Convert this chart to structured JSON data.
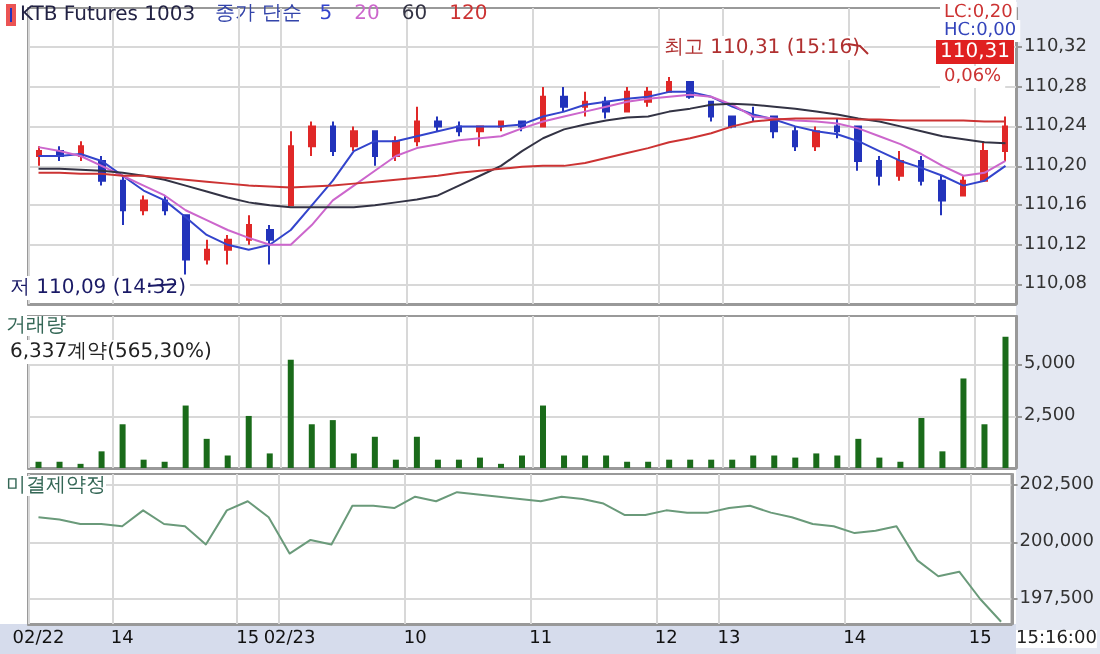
{
  "chart_data": [
    {
      "type": "candlestick",
      "legend": "top left",
      "legend_title": "종가 단순",
      "grid": true,
      "marker": "none",
      "tick_labels": "y",
      "categories": [
        null,
        null,
        null,
        null,
        null,
        null,
        null,
        null,
        null,
        null,
        null,
        null,
        null,
        null,
        null,
        null,
        null,
        null,
        null,
        null,
        null,
        null,
        null,
        null,
        null,
        null,
        null,
        null,
        null,
        null,
        null,
        null,
        null,
        null,
        null,
        null,
        null,
        null,
        null,
        null,
        null,
        null,
        null,
        null,
        null,
        null,
        null
      ],
      "ylim": [
        110.06,
        110.36
      ],
      "yticks": [
        {
          "value": 110.08,
          "label": "110,08"
        },
        {
          "value": 110.12,
          "label": "110,12"
        },
        {
          "value": 110.16,
          "label": "110,16"
        },
        {
          "value": 110.2,
          "label": "110,20"
        },
        {
          "value": 110.24,
          "label": "110,24"
        },
        {
          "value": 110.28,
          "label": "110,28"
        },
        {
          "value": 110.32,
          "label": "110,32"
        }
      ],
      "annotations": [
        "저 110,09 (14:32)",
        "최고 110,31 (15:16)",
        "LC:0,20",
        "HC:0,00",
        "110,31",
        "0,06%"
      ],
      "series": [
        {
          "name": "KTB Futures 1003",
          "color": "#2233bb",
          "ohlc": [
            [
              110.21,
              110.22,
              110.2,
              110.215
            ],
            [
              110.215,
              110.22,
              110.205,
              110.21
            ],
            [
              110.21,
              110.225,
              110.205,
              110.22
            ],
            [
              110.205,
              110.21,
              110.18,
              110.185
            ],
            [
              110.185,
              110.19,
              110.14,
              110.155
            ],
            [
              110.155,
              110.17,
              110.15,
              110.165
            ],
            [
              110.165,
              110.17,
              110.15,
              110.155
            ],
            [
              110.15,
              110.15,
              110.09,
              110.105
            ],
            [
              110.105,
              110.125,
              110.1,
              110.115
            ],
            [
              110.115,
              110.13,
              110.1,
              110.125
            ],
            [
              110.125,
              110.15,
              110.12,
              110.14
            ],
            [
              110.135,
              110.14,
              110.1,
              110.125
            ],
            [
              110.16,
              110.235,
              110.16,
              110.22
            ],
            [
              110.22,
              110.245,
              110.21,
              110.24
            ],
            [
              110.24,
              110.245,
              110.21,
              110.215
            ],
            [
              110.22,
              110.24,
              110.215,
              110.235
            ],
            [
              110.235,
              110.235,
              110.2,
              110.21
            ],
            [
              110.21,
              110.23,
              110.205,
              110.225
            ],
            [
              110.225,
              110.26,
              110.22,
              110.245
            ],
            [
              110.245,
              110.25,
              110.235,
              110.24
            ],
            [
              110.24,
              110.245,
              110.23,
              110.235
            ],
            [
              110.235,
              110.24,
              110.22,
              110.24
            ],
            [
              110.24,
              110.245,
              110.235,
              110.245
            ],
            [
              110.245,
              110.245,
              110.235,
              110.24
            ],
            [
              110.24,
              110.28,
              110.24,
              110.27
            ],
            [
              110.27,
              110.28,
              110.255,
              110.26
            ],
            [
              110.26,
              110.275,
              110.25,
              110.265
            ],
            [
              110.265,
              110.27,
              110.248,
              110.255
            ],
            [
              110.255,
              110.28,
              110.255,
              110.275
            ],
            [
              110.265,
              110.28,
              110.26,
              110.275
            ],
            [
              110.275,
              110.29,
              110.275,
              110.285
            ],
            [
              110.285,
              110.285,
              110.268,
              110.27
            ],
            [
              110.265,
              110.265,
              110.245,
              110.25
            ],
            [
              110.25,
              110.25,
              110.238,
              110.24
            ],
            [
              110.25,
              110.26,
              110.245,
              110.25
            ],
            [
              110.25,
              110.25,
              110.228,
              110.235
            ],
            [
              110.235,
              110.24,
              110.215,
              110.22
            ],
            [
              110.22,
              110.24,
              110.215,
              110.235
            ],
            [
              110.24,
              110.248,
              110.228,
              110.235
            ],
            [
              110.24,
              110.24,
              110.195,
              110.205
            ],
            [
              110.205,
              110.21,
              110.18,
              110.19
            ],
            [
              110.19,
              110.215,
              110.185,
              110.205
            ],
            [
              110.205,
              110.21,
              110.18,
              110.185
            ],
            [
              110.185,
              110.19,
              110.15,
              110.165
            ],
            [
              110.17,
              110.19,
              110.17,
              110.185
            ],
            [
              110.185,
              110.225,
              110.185,
              110.215
            ],
            [
              110.215,
              110.25,
              110.205,
              110.24
            ]
          ],
          "colors": [
            "#e02828",
            "#2233bb",
            "#e02828",
            "#2233bb",
            "#2233bb",
            "#e02828",
            "#2233bb",
            "#2233bb",
            "#e02828",
            "#e02828",
            "#e02828",
            "#2233bb",
            "#e02828",
            "#e02828",
            "#2233bb",
            "#e02828",
            "#2233bb",
            "#e02828",
            "#e02828",
            "#2233bb",
            "#2233bb",
            "#e02828",
            "#e02828",
            "#2233bb",
            "#e02828",
            "#2233bb",
            "#e02828",
            "#2233bb",
            "#e02828",
            "#e02828",
            "#e02828",
            "#2233bb",
            "#2233bb",
            "#2233bb",
            "#2233bb",
            "#2233bb",
            "#2233bb",
            "#e02828",
            "#2233bb",
            "#2233bb",
            "#2233bb",
            "#e02828",
            "#2233bb",
            "#2233bb",
            "#e02828",
            "#e02828",
            "#e02828"
          ]
        },
        {
          "name": "5",
          "type": "line",
          "color": "#3344cc",
          "values": [
            110.21,
            110.21,
            110.212,
            110.205,
            110.19,
            110.175,
            110.165,
            110.148,
            110.13,
            110.12,
            110.115,
            110.12,
            110.135,
            110.16,
            110.185,
            110.215,
            110.225,
            110.225,
            110.23,
            110.235,
            110.24,
            110.24,
            110.24,
            110.242,
            110.25,
            110.255,
            110.262,
            110.265,
            110.268,
            110.27,
            110.275,
            110.275,
            110.27,
            110.26,
            110.252,
            110.247,
            110.24,
            110.235,
            110.232,
            110.225,
            110.215,
            110.205,
            110.198,
            110.19,
            110.18,
            110.185,
            110.2
          ]
        },
        {
          "name": "20",
          "type": "line",
          "color": "#cc66cc",
          "values": [
            110.219,
            110.215,
            110.21,
            110.2,
            110.19,
            110.18,
            110.17,
            110.155,
            110.145,
            110.135,
            110.127,
            110.12,
            110.12,
            110.14,
            110.165,
            110.18,
            110.195,
            110.21,
            110.218,
            110.222,
            110.226,
            110.228,
            110.23,
            110.238,
            110.245,
            110.25,
            110.255,
            110.26,
            110.265,
            110.268,
            110.27,
            110.272,
            110.27,
            110.262,
            110.25,
            110.248,
            110.246,
            110.245,
            110.243,
            110.238,
            110.23,
            110.222,
            110.212,
            110.2,
            110.19,
            110.193,
            110.205
          ]
        },
        {
          "name": "60",
          "type": "line",
          "color": "#333344",
          "values": [
            110.197,
            110.197,
            110.196,
            110.195,
            110.193,
            110.19,
            110.186,
            110.18,
            110.174,
            110.168,
            110.163,
            110.16,
            110.158,
            110.158,
            110.158,
            110.158,
            110.16,
            110.163,
            110.166,
            110.17,
            110.18,
            110.19,
            110.2,
            110.215,
            110.228,
            110.237,
            110.242,
            110.246,
            110.249,
            110.25,
            110.255,
            110.258,
            110.262,
            110.263,
            110.262,
            110.26,
            110.258,
            110.255,
            110.252,
            110.248,
            110.245,
            110.24,
            110.235,
            110.23,
            110.227,
            110.224,
            110.223
          ]
        },
        {
          "name": "120",
          "type": "line",
          "color": "#cc3333",
          "values": [
            110.193,
            110.193,
            110.192,
            110.192,
            110.19,
            110.19,
            110.188,
            110.186,
            110.184,
            110.182,
            110.18,
            110.179,
            110.178,
            110.179,
            110.18,
            110.182,
            110.184,
            110.186,
            110.188,
            110.19,
            110.193,
            110.195,
            110.197,
            110.199,
            110.2,
            110.2,
            110.203,
            110.208,
            110.213,
            110.218,
            110.224,
            110.228,
            110.233,
            110.24,
            110.245,
            110.247,
            110.248,
            110.248,
            110.248,
            110.247,
            110.247,
            110.246,
            110.246,
            110.246,
            110.246,
            110.245,
            110.245
          ]
        }
      ]
    },
    {
      "type": "bar",
      "title": "거래량",
      "grid": true,
      "tick_labels": "y",
      "categories": [
        null,
        null,
        null,
        null,
        null,
        null,
        null,
        null,
        null,
        null,
        null,
        null,
        null,
        null,
        null,
        null,
        null,
        null,
        null,
        null,
        null,
        null,
        null,
        null,
        null,
        null,
        null,
        null,
        null,
        null,
        null,
        null,
        null,
        null,
        null,
        null,
        null,
        null,
        null,
        null,
        null,
        null,
        null,
        null,
        null,
        null,
        null
      ],
      "ylim": [
        0,
        7300
      ],
      "yticks": [
        {
          "value": 2500,
          "label": "2,500"
        },
        {
          "value": 5000,
          "label": "5,000"
        }
      ],
      "annotations": [
        "6,337계약(565,30%)"
      ],
      "series": [
        {
          "color": "#1a6b1a",
          "values": [
            300,
            300,
            200,
            800,
            2100,
            400,
            300,
            3000,
            1400,
            600,
            2500,
            700,
            5200,
            2100,
            2300,
            700,
            1500,
            400,
            1500,
            400,
            400,
            500,
            200,
            600,
            3000,
            600,
            600,
            600,
            300,
            300,
            400,
            400,
            400,
            400,
            600,
            600,
            500,
            700,
            600,
            1400,
            500,
            300,
            2400,
            800,
            4300,
            2100,
            6300
          ]
        }
      ]
    },
    {
      "type": "line",
      "title": "미결제약정",
      "grid": true,
      "marker": "none",
      "categories": [
        "02/22",
        null,
        null,
        null,
        "14",
        null,
        null,
        null,
        null,
        null,
        "15",
        null,
        "02/23",
        null,
        null,
        null,
        null,
        null,
        "10",
        null,
        null,
        null,
        null,
        null,
        "11",
        null,
        null,
        null,
        null,
        null,
        "12",
        null,
        null,
        "13",
        null,
        null,
        null,
        null,
        null,
        "14",
        null,
        null,
        null,
        null,
        null,
        "15",
        null
      ],
      "ylim": [
        196400,
        203000
      ],
      "yticks": [
        {
          "value": 197500,
          "label": "197,500"
        },
        {
          "value": 200000,
          "label": "200,000"
        },
        {
          "value": 202500,
          "label": "202,500"
        }
      ],
      "annotations": [
        "15:16:00"
      ],
      "series": [
        {
          "color": "#6a9a7a",
          "values": [
            201100,
            201000,
            200800,
            200800,
            200700,
            201400,
            200800,
            200700,
            199900,
            201400,
            201800,
            201100,
            199500,
            200100,
            199900,
            201600,
            201600,
            201500,
            202000,
            201800,
            202200,
            202100,
            202000,
            201900,
            201800,
            202000,
            201900,
            201700,
            201200,
            201200,
            201400,
            201300,
            201300,
            201500,
            201600,
            201300,
            201100,
            200800,
            200700,
            200400,
            200500,
            200700,
            199200,
            198500,
            198700,
            197500,
            196500
          ]
        }
      ]
    }
  ]
}
